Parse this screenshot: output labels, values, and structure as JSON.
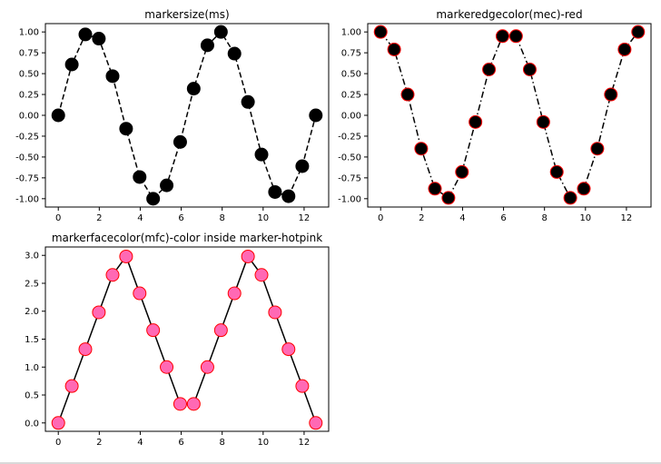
{
  "chart_data": [
    {
      "type": "line",
      "title": "markersize(ms)",
      "xlabel": "",
      "ylabel": "",
      "xlim": [
        -0.63,
        13.2
      ],
      "ylim": [
        -1.1,
        1.1
      ],
      "xticks": [
        "0",
        "2",
        "4",
        "6",
        "8",
        "10",
        "12"
      ],
      "yticks": [
        "1.00",
        "0.75",
        "0.50",
        "0.25",
        "0.00",
        "-0.25",
        "-0.50",
        "-0.75",
        "-1.00"
      ],
      "grid": false,
      "line_style": "dashed",
      "line_color": "#000000",
      "marker_face": "#000000",
      "marker_edge": "#000000",
      "series": [
        {
          "x": [
            0,
            0.66,
            1.32,
            1.98,
            2.65,
            3.31,
            3.97,
            4.63,
            5.29,
            5.95,
            6.61,
            7.28,
            7.94,
            8.6,
            9.26,
            9.92,
            10.58,
            11.24,
            11.91,
            12.57
          ],
          "y": [
            0,
            0.61,
            0.97,
            0.92,
            0.47,
            -0.16,
            -0.74,
            -1.0,
            -0.84,
            -0.32,
            0.32,
            0.84,
            1.0,
            0.74,
            0.16,
            -0.47,
            -0.92,
            -0.97,
            -0.61,
            0
          ]
        }
      ]
    },
    {
      "type": "line",
      "title": "markeredgecolor(mec)-red",
      "xlabel": "",
      "ylabel": "",
      "xlim": [
        -0.63,
        13.2
      ],
      "ylim": [
        -1.1,
        1.1
      ],
      "xticks": [
        "0",
        "2",
        "4",
        "6",
        "8",
        "10",
        "12"
      ],
      "yticks": [
        "1.00",
        "0.75",
        "0.50",
        "0.25",
        "0.00",
        "-0.25",
        "-0.50",
        "-0.75",
        "-1.00"
      ],
      "grid": false,
      "line_style": "dashdot",
      "line_color": "#000000",
      "marker_face": "#000000",
      "marker_edge": "#ff0000",
      "series": [
        {
          "x": [
            0,
            0.66,
            1.32,
            1.98,
            2.65,
            3.31,
            3.97,
            4.63,
            5.29,
            5.95,
            6.61,
            7.28,
            7.94,
            8.6,
            9.26,
            9.92,
            10.58,
            11.24,
            11.91,
            12.57
          ],
          "y": [
            1.0,
            0.79,
            0.25,
            -0.4,
            -0.88,
            -0.99,
            -0.68,
            -0.08,
            0.55,
            0.95,
            0.95,
            0.55,
            -0.08,
            -0.68,
            -0.99,
            -0.88,
            -0.4,
            0.25,
            0.79,
            1.0
          ]
        }
      ]
    },
    {
      "type": "line",
      "title": "markerfacecolor(mfc)-color inside marker-hotpink",
      "xlabel": "",
      "ylabel": "",
      "xlim": [
        -0.63,
        13.2
      ],
      "ylim": [
        -0.15,
        3.15
      ],
      "xticks": [
        "0",
        "2",
        "4",
        "6",
        "8",
        "10",
        "12"
      ],
      "yticks": [
        "3.0",
        "2.5",
        "2.0",
        "1.5",
        "1.0",
        "0.5",
        "0.0"
      ],
      "grid": false,
      "line_style": "solid",
      "line_color": "#000000",
      "marker_face": "#ff69b4",
      "marker_edge": "#ff0000",
      "series": [
        {
          "x": [
            0,
            0.66,
            1.32,
            1.98,
            2.65,
            3.31,
            3.97,
            4.63,
            5.29,
            5.95,
            6.61,
            7.28,
            7.94,
            8.6,
            9.26,
            9.92,
            10.58,
            11.24,
            11.91,
            12.57
          ],
          "y": [
            0,
            0.66,
            1.32,
            1.98,
            2.65,
            2.98,
            2.32,
            1.66,
            1.0,
            0.34,
            0.34,
            1.0,
            1.66,
            2.32,
            2.98,
            2.65,
            1.98,
            1.32,
            0.66,
            0
          ]
        }
      ]
    }
  ]
}
